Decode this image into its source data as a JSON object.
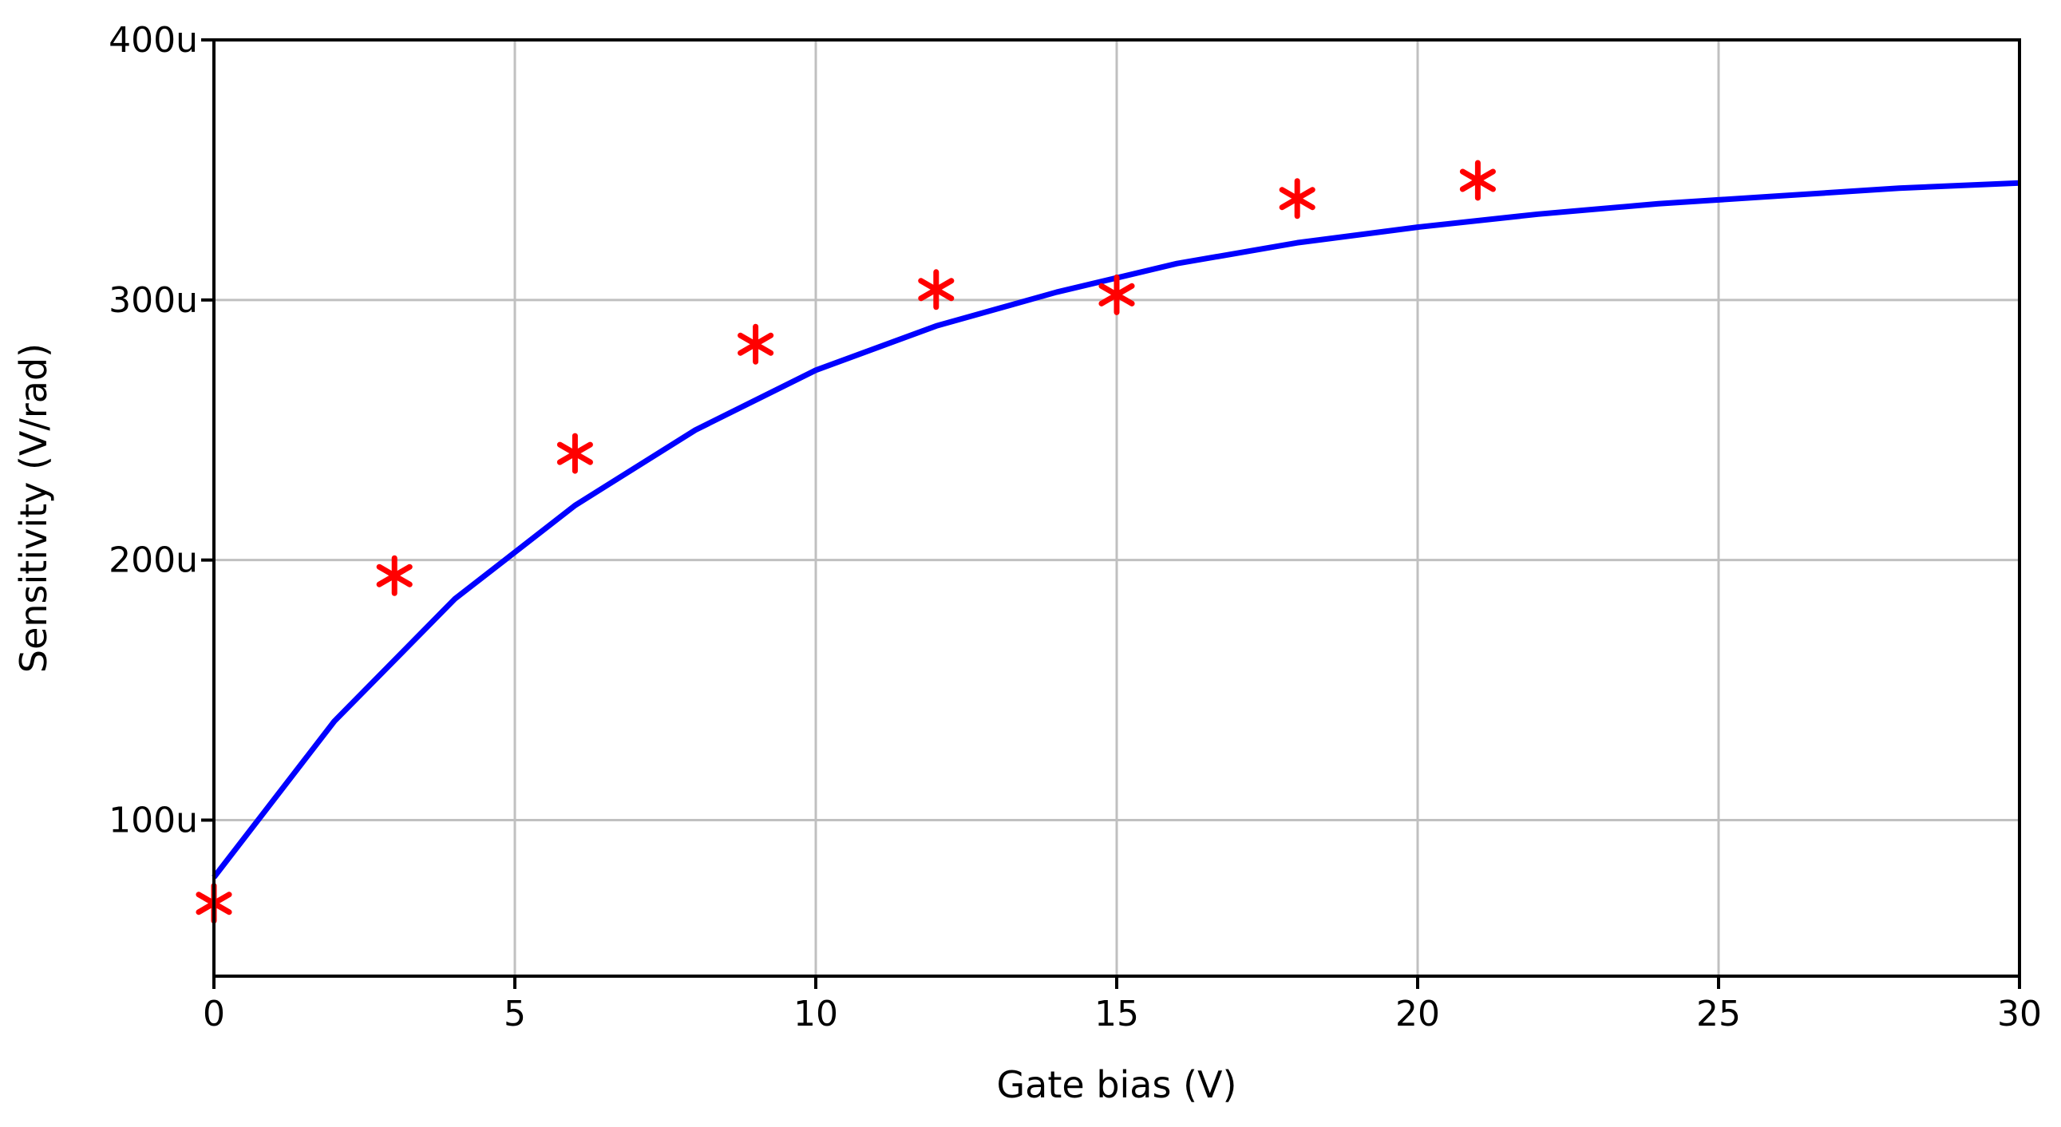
{
  "chart_data": {
    "type": "line",
    "title": "",
    "xlabel": "Gate bias (V)",
    "ylabel": "Sensitivity (V/rad)",
    "xlim": [
      0,
      30
    ],
    "ylim": [
      40,
      400
    ],
    "grid": true,
    "x_ticks": [
      {
        "value": 0,
        "label": "0"
      },
      {
        "value": 5,
        "label": "5"
      },
      {
        "value": 10,
        "label": "10"
      },
      {
        "value": 15,
        "label": "15"
      },
      {
        "value": 20,
        "label": "20"
      },
      {
        "value": 25,
        "label": "25"
      },
      {
        "value": 30,
        "label": "30"
      }
    ],
    "y_ticks": [
      {
        "value": 100,
        "label": "100u"
      },
      {
        "value": 200,
        "label": "200u"
      },
      {
        "value": 300,
        "label": "300u"
      },
      {
        "value": 400,
        "label": "400u"
      }
    ],
    "series": [
      {
        "type": "line",
        "color": "#0000ff",
        "x": [
          0,
          2,
          4,
          6,
          8,
          10,
          12,
          14,
          16,
          18,
          20,
          22,
          24,
          26,
          28,
          30
        ],
        "y": [
          78,
          138,
          185,
          221,
          250,
          273,
          290,
          303,
          314,
          322,
          328,
          333,
          337,
          340,
          343,
          345
        ]
      },
      {
        "type": "scatter",
        "marker": "asterisk",
        "color": "#ff0000",
        "x": [
          0,
          3,
          6,
          9,
          12,
          15,
          18,
          21
        ],
        "y": [
          68,
          194,
          241,
          283,
          304,
          302,
          339,
          346
        ]
      }
    ]
  }
}
